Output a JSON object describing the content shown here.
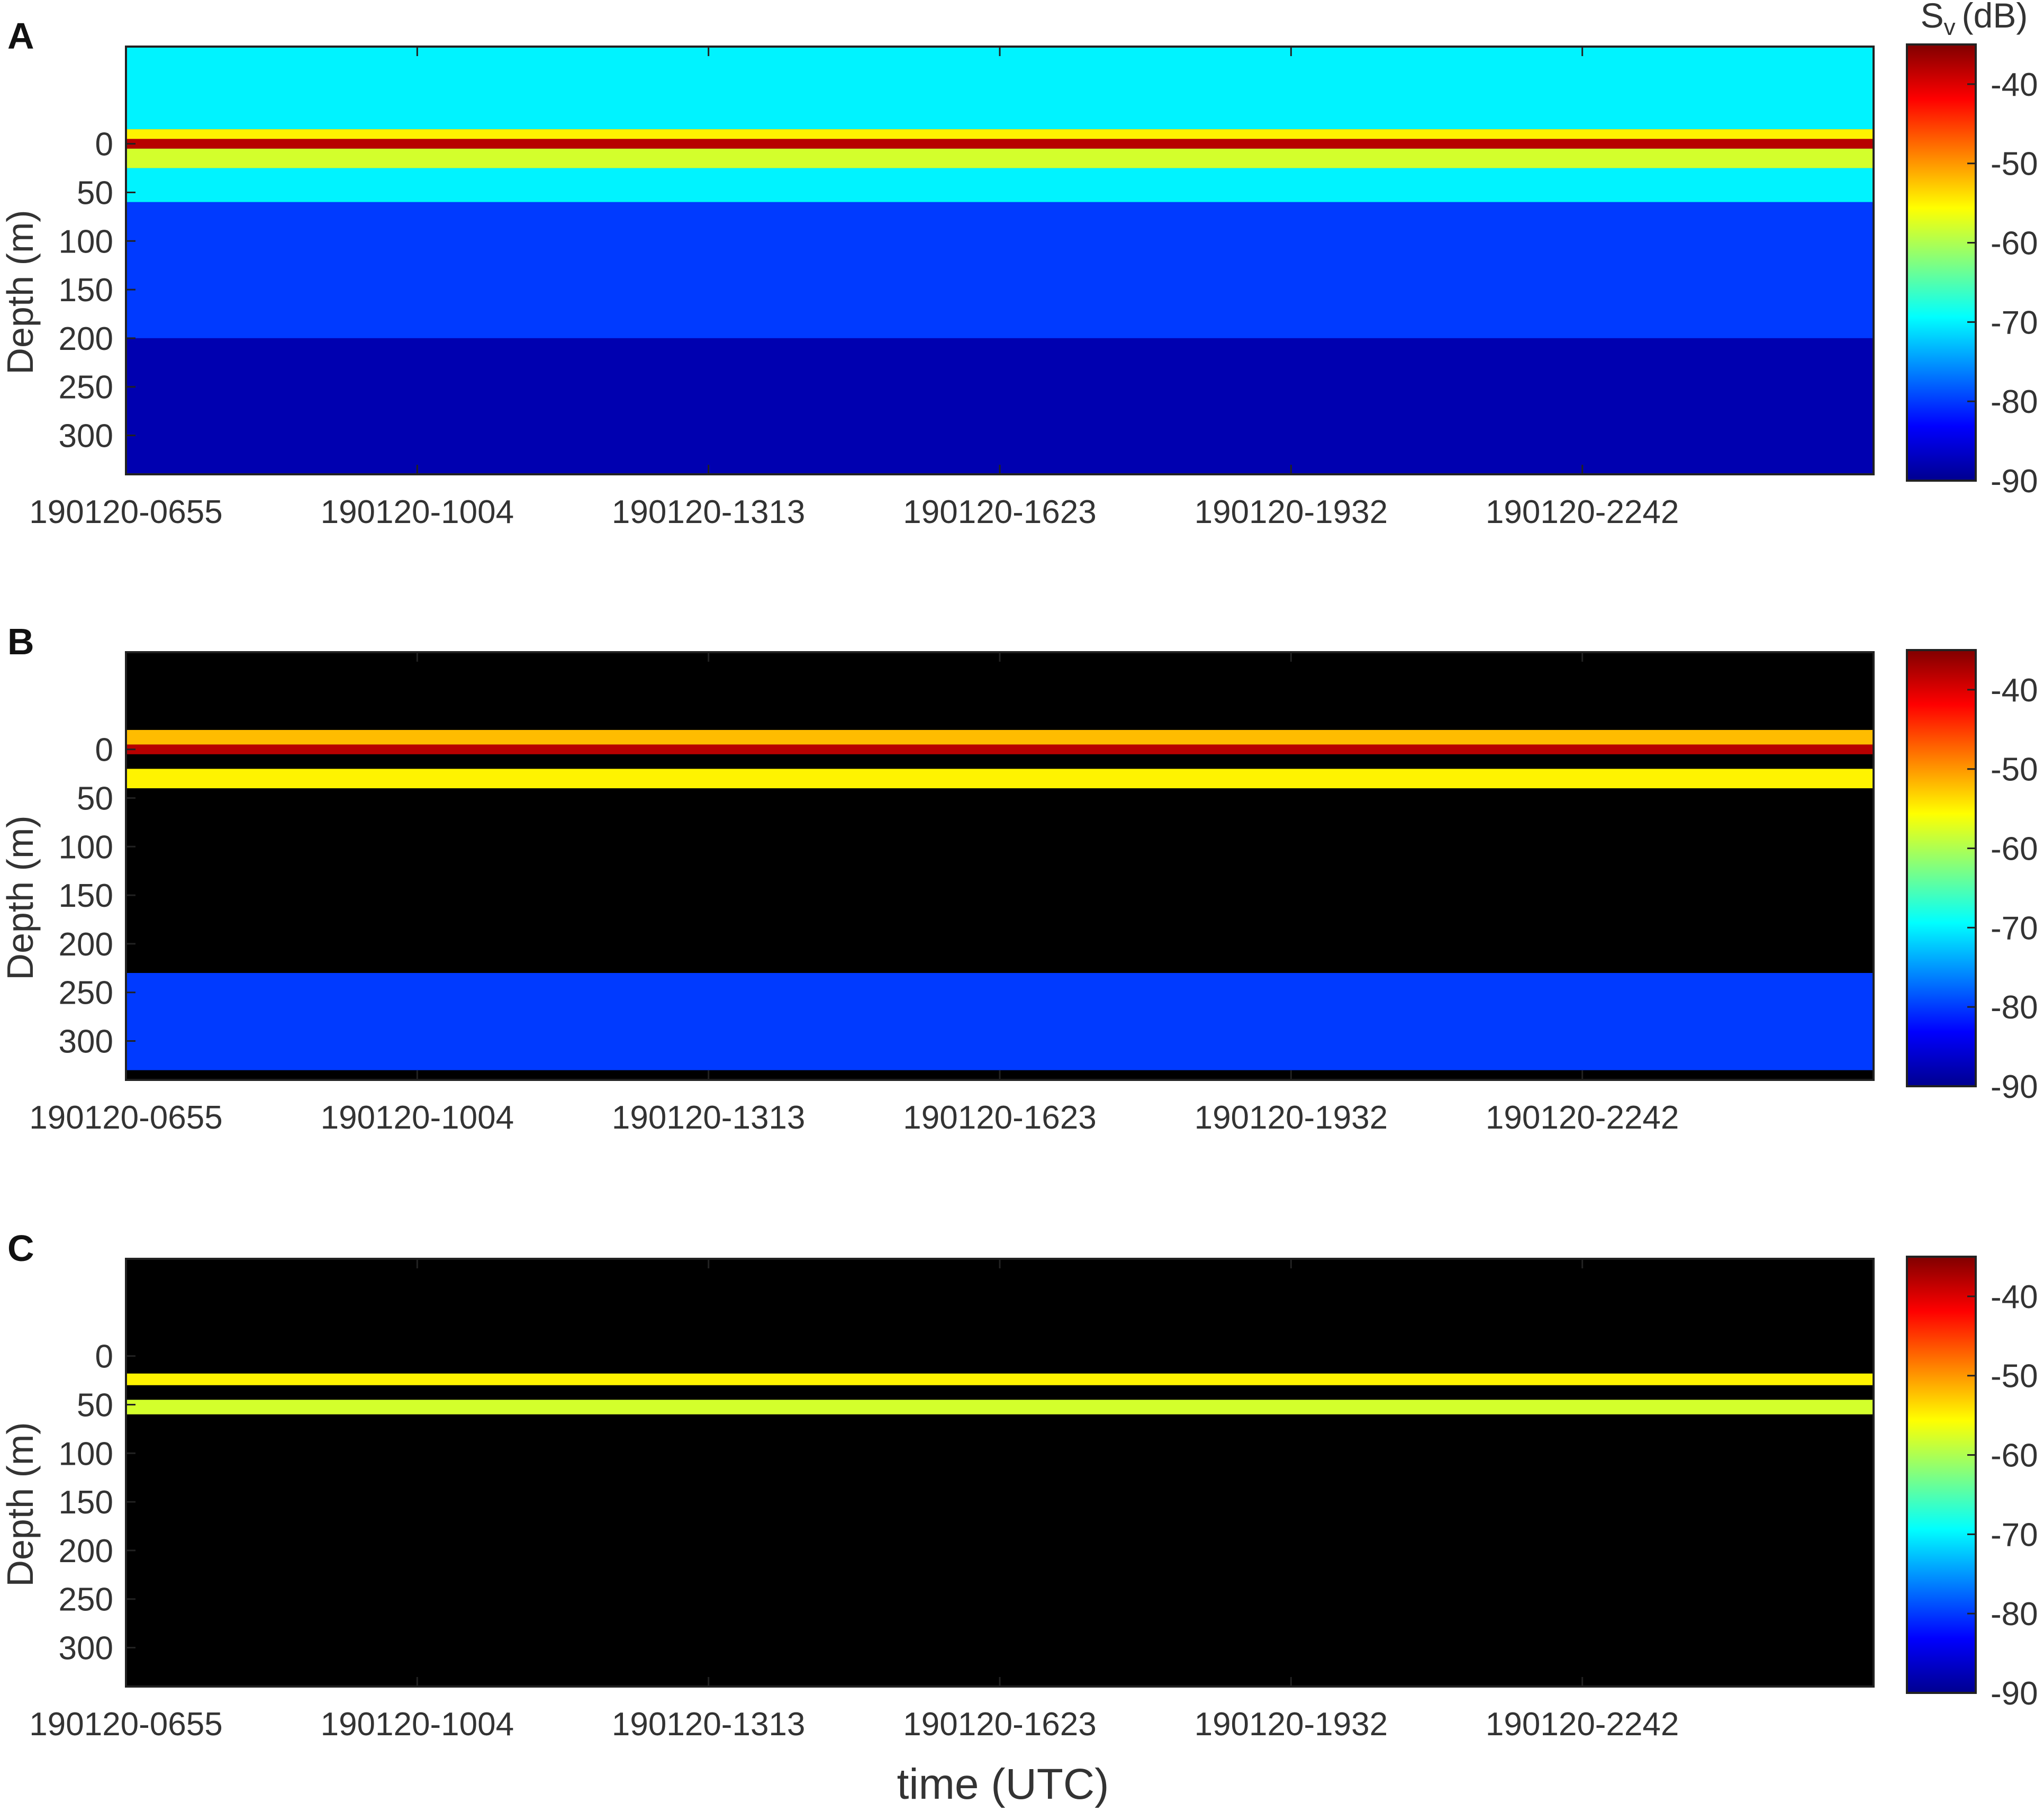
{
  "figure": {
    "xlabel": "time (UTC)",
    "colorbar_title_main": "S",
    "colorbar_title_sub": "v",
    "colorbar_title_unit": "(dB)"
  },
  "colorbar": {
    "ticks": [
      "-40",
      "-50",
      "-60",
      "-70",
      "-80",
      "-90"
    ],
    "range": [
      -90,
      -35
    ],
    "colormap": "jet",
    "stops": [
      "#00008f",
      "#0000ff",
      "#0080ff",
      "#00ffff",
      "#80ff80",
      "#ffff00",
      "#ff8000",
      "#ff0000",
      "#800000"
    ]
  },
  "chart_data": [
    {
      "type": "heatmap",
      "panel_label": "A",
      "xlabel": "",
      "ylabel": "Depth (m)",
      "x_ticks": [
        "190120-0655",
        "190120-1004",
        "190120-1313",
        "190120-1623",
        "190120-1932",
        "190120-2242"
      ],
      "y_ticks": [
        "0",
        "50",
        "100",
        "150",
        "200",
        "250",
        "300"
      ],
      "y_tick_values": [
        0,
        50,
        100,
        150,
        200,
        250,
        300
      ],
      "ylim": [
        -100,
        340
      ],
      "grid": false,
      "background": "#00008f",
      "bands": [
        {
          "depth_min": -100,
          "depth_max": -15,
          "sv": -70
        },
        {
          "depth_min": -15,
          "depth_max": -5,
          "sv": -55
        },
        {
          "depth_min": -5,
          "depth_max": 5,
          "sv": -38
        },
        {
          "depth_min": 5,
          "depth_max": 25,
          "sv": -58
        },
        {
          "depth_min": 25,
          "depth_max": 60,
          "sv": -70
        },
        {
          "depth_min": 60,
          "depth_max": 200,
          "sv": -80
        },
        {
          "depth_min": 200,
          "depth_max": 340,
          "sv": -88
        }
      ]
    },
    {
      "type": "heatmap",
      "panel_label": "B",
      "xlabel": "",
      "ylabel": "Depth (m)",
      "x_ticks": [
        "190120-0655",
        "190120-1004",
        "190120-1313",
        "190120-1623",
        "190120-1932",
        "190120-2242"
      ],
      "y_ticks": [
        "0",
        "50",
        "100",
        "150",
        "200",
        "250",
        "300"
      ],
      "y_tick_values": [
        0,
        50,
        100,
        150,
        200,
        250,
        300
      ],
      "ylim": [
        -100,
        340
      ],
      "grid": false,
      "background": "#000000",
      "bands": [
        {
          "depth_min": -20,
          "depth_max": -5,
          "sv": -52
        },
        {
          "depth_min": -5,
          "depth_max": 5,
          "sv": -38
        },
        {
          "depth_min": 20,
          "depth_max": 40,
          "sv": -55
        },
        {
          "depth_min": 230,
          "depth_max": 330,
          "sv": -80
        }
      ]
    },
    {
      "type": "heatmap",
      "panel_label": "C",
      "xlabel": "time (UTC)",
      "ylabel": "Depth (m)",
      "x_ticks": [
        "190120-0655",
        "190120-1004",
        "190120-1313",
        "190120-1623",
        "190120-1932",
        "190120-2242"
      ],
      "y_ticks": [
        "0",
        "50",
        "100",
        "150",
        "200",
        "250",
        "300"
      ],
      "y_tick_values": [
        0,
        50,
        100,
        150,
        200,
        250,
        300
      ],
      "ylim": [
        -100,
        340
      ],
      "grid": false,
      "background": "#000000",
      "bands": [
        {
          "depth_min": 18,
          "depth_max": 30,
          "sv": -55
        },
        {
          "depth_min": 45,
          "depth_max": 60,
          "sv": -58
        }
      ]
    }
  ]
}
